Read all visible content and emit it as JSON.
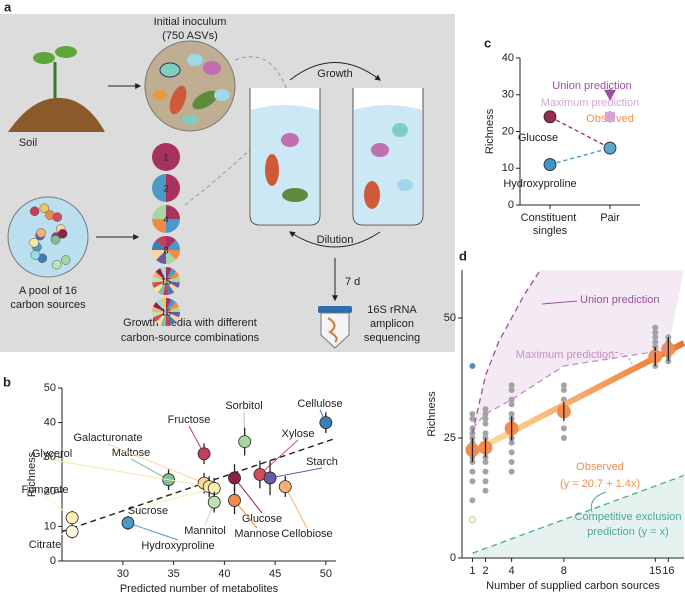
{
  "panel_labels": [
    "a",
    "b",
    "c",
    "d"
  ],
  "diagram": {
    "inoculum": [
      "Initial inoculum",
      "(750 ASVs)"
    ],
    "soil": "Soil",
    "growth": "Growth",
    "dilution": "Dilution",
    "time": "7 d",
    "sequencing": [
      "16S rRNA",
      "amplicon",
      "sequencing"
    ],
    "pool": [
      "A pool of 16",
      "carbon sources"
    ],
    "media": [
      "Growth media with different",
      "carbon-source combinations"
    ],
    "pies": [
      1,
      2,
      4,
      8,
      15,
      16
    ]
  },
  "chart_data": [
    {
      "type": "scatter",
      "xlabel": "Predicted number of metabolites",
      "ylabel": "Richness",
      "xlim": [
        24,
        51
      ],
      "ylim": [
        0,
        50
      ],
      "xticks": [
        30,
        35,
        40,
        45,
        50
      ],
      "yticks": [
        0,
        10,
        20,
        30,
        40,
        50
      ],
      "categories": [
        "Cellulose",
        "Sorbitol",
        "Fructose",
        "Xylose",
        "Starch",
        "Glucose",
        "Mannose",
        "Cellobiose",
        "Maltose",
        "Galacturonate",
        "Glycerol",
        "Sucrose",
        "Mannitol",
        "Hydroxyproline",
        "Fumarate",
        "Citrate"
      ],
      "x": [
        50,
        42,
        38,
        43.5,
        44.5,
        41,
        41,
        46,
        34.5,
        38,
        38.5,
        39,
        39,
        30.5,
        25,
        25
      ],
      "values": [
        40,
        34.5,
        31,
        25,
        24,
        24,
        17.5,
        21.5,
        23.5,
        22.5,
        21.5,
        21,
        17,
        11,
        12.5,
        8.5
      ],
      "errors": [
        3,
        4,
        3,
        4,
        5,
        4,
        4,
        3,
        3,
        3,
        3,
        3,
        3,
        2,
        2,
        2
      ],
      "colors": [
        "#3d7fb8",
        "#a8d5a2",
        "#c2405a",
        "#d64b5b",
        "#6a5aa8",
        "#8e2043",
        "#f08a4b",
        "#f6b070",
        "#7fbf9a",
        "#fcd59a",
        "#fbe6a2",
        "#f9efb0",
        "#bfe3b0",
        "#4a9ac9",
        "#fff3b8",
        "#fffbe0"
      ],
      "fit": {
        "x": [
          24,
          51
        ],
        "values": [
          8.5,
          35.5
        ]
      }
    },
    {
      "type": "dot",
      "ylabel": "Richness",
      "categories": [
        "Constituent singles",
        "Pair"
      ],
      "ylim": [
        0,
        40
      ],
      "yticks": [
        0,
        10,
        20,
        30,
        40
      ],
      "series": [
        {
          "name": "Glucose",
          "color": "#9b2b4e",
          "marker": "circle",
          "values": [
            24,
            null
          ],
          "errors": [
            1.5,
            null
          ]
        },
        {
          "name": "Hydroxyproline",
          "color": "#3f95c4",
          "marker": "circle",
          "values": [
            11,
            null
          ],
          "errors": [
            1.5,
            null
          ]
        },
        {
          "name": "Observed",
          "color": "#f28c4f",
          "marker": "circle",
          "fill": "#5aa8cc",
          "values": [
            null,
            15.5
          ],
          "errors": [
            null,
            1.5
          ]
        },
        {
          "name": "Union prediction",
          "color": "#9b4f9e",
          "marker": "triangle-down",
          "values": [
            null,
            30
          ],
          "errors": [
            null,
            1.5
          ]
        },
        {
          "name": "Maximum prediction",
          "color": "#d4a6d6",
          "marker": "square",
          "values": [
            null,
            24
          ],
          "errors": [
            null,
            1.5
          ]
        }
      ]
    },
    {
      "type": "scatter",
      "xlabel": "Number of supplied carbon sources",
      "ylabel": "Richness",
      "xlim": [
        0.2,
        17.2
      ],
      "ylim": [
        0,
        60
      ],
      "xticks": [
        1,
        2,
        4,
        8,
        15,
        16
      ],
      "yticks": [
        0,
        25,
        50
      ],
      "series": [
        {
          "kind": "points",
          "color": "#a3a3a3",
          "x": [
            1,
            1,
            1,
            1,
            1,
            1,
            1,
            1,
            1,
            1,
            1,
            1,
            1,
            2,
            2,
            2,
            2,
            2,
            2,
            2,
            2,
            2,
            2,
            2,
            2,
            2,
            2,
            4,
            4,
            4,
            4,
            4,
            4,
            4,
            4,
            4,
            4,
            4,
            4,
            4,
            4,
            8,
            8,
            8,
            8,
            8,
            15,
            15,
            15,
            15,
            15,
            15,
            15,
            15,
            15,
            16,
            16,
            16,
            16,
            16,
            16
          ],
          "values": [
            12,
            16,
            18,
            20,
            21,
            22,
            23,
            24,
            25,
            26,
            27,
            29,
            30,
            14,
            16,
            18,
            20,
            21,
            22,
            23,
            24,
            25,
            26,
            28,
            29,
            30,
            31,
            18,
            20,
            22,
            24,
            25,
            26,
            27,
            28,
            29,
            30,
            32,
            33,
            35,
            36,
            25,
            27,
            33,
            35,
            36,
            40,
            41,
            42,
            43,
            44,
            45,
            46,
            47,
            48,
            41,
            42,
            43,
            44,
            45,
            46
          ]
        },
        {
          "kind": "points",
          "color": "#4a8ec2",
          "x": [
            1
          ],
          "values": [
            40
          ]
        },
        {
          "kind": "hollow",
          "color": "#c9c97a",
          "x": [
            1
          ],
          "values": [
            8
          ]
        },
        {
          "kind": "line",
          "colors": [
            "#fde3a3",
            "#f0702f"
          ],
          "x": [
            1,
            17.2
          ],
          "values": [
            22.1,
            44.8
          ]
        },
        {
          "kind": "errorpoints",
          "name": "Observed",
          "color": "#f28c4f",
          "x": [
            1,
            2,
            4,
            8,
            15,
            16
          ],
          "values": [
            22.5,
            23,
            27,
            30.5,
            42,
            43.5
          ],
          "errors": [
            2.5,
            2,
            2.5,
            2,
            2,
            2.5
          ]
        },
        {
          "kind": "dashed",
          "name": "Union prediction",
          "color": "#9b4f9e",
          "x": [
            1,
            2,
            3,
            4,
            5,
            6.2
          ],
          "values": [
            26,
            38,
            45,
            50,
            55,
            60
          ]
        },
        {
          "kind": "dashed",
          "name": "Maximum prediction",
          "color": "#c88bc9",
          "x": [
            1,
            2,
            4,
            8,
            15,
            16
          ],
          "values": [
            27,
            30,
            33,
            40,
            43,
            44
          ]
        },
        {
          "kind": "area",
          "color": "#4ea79a",
          "x": [
            1,
            17.2
          ],
          "values": [
            1,
            17.2
          ]
        }
      ],
      "annotations": [
        "(y = 20.7 + 1.4x)",
        "Competitive exclusion",
        "prediction (y = x)"
      ]
    }
  ]
}
